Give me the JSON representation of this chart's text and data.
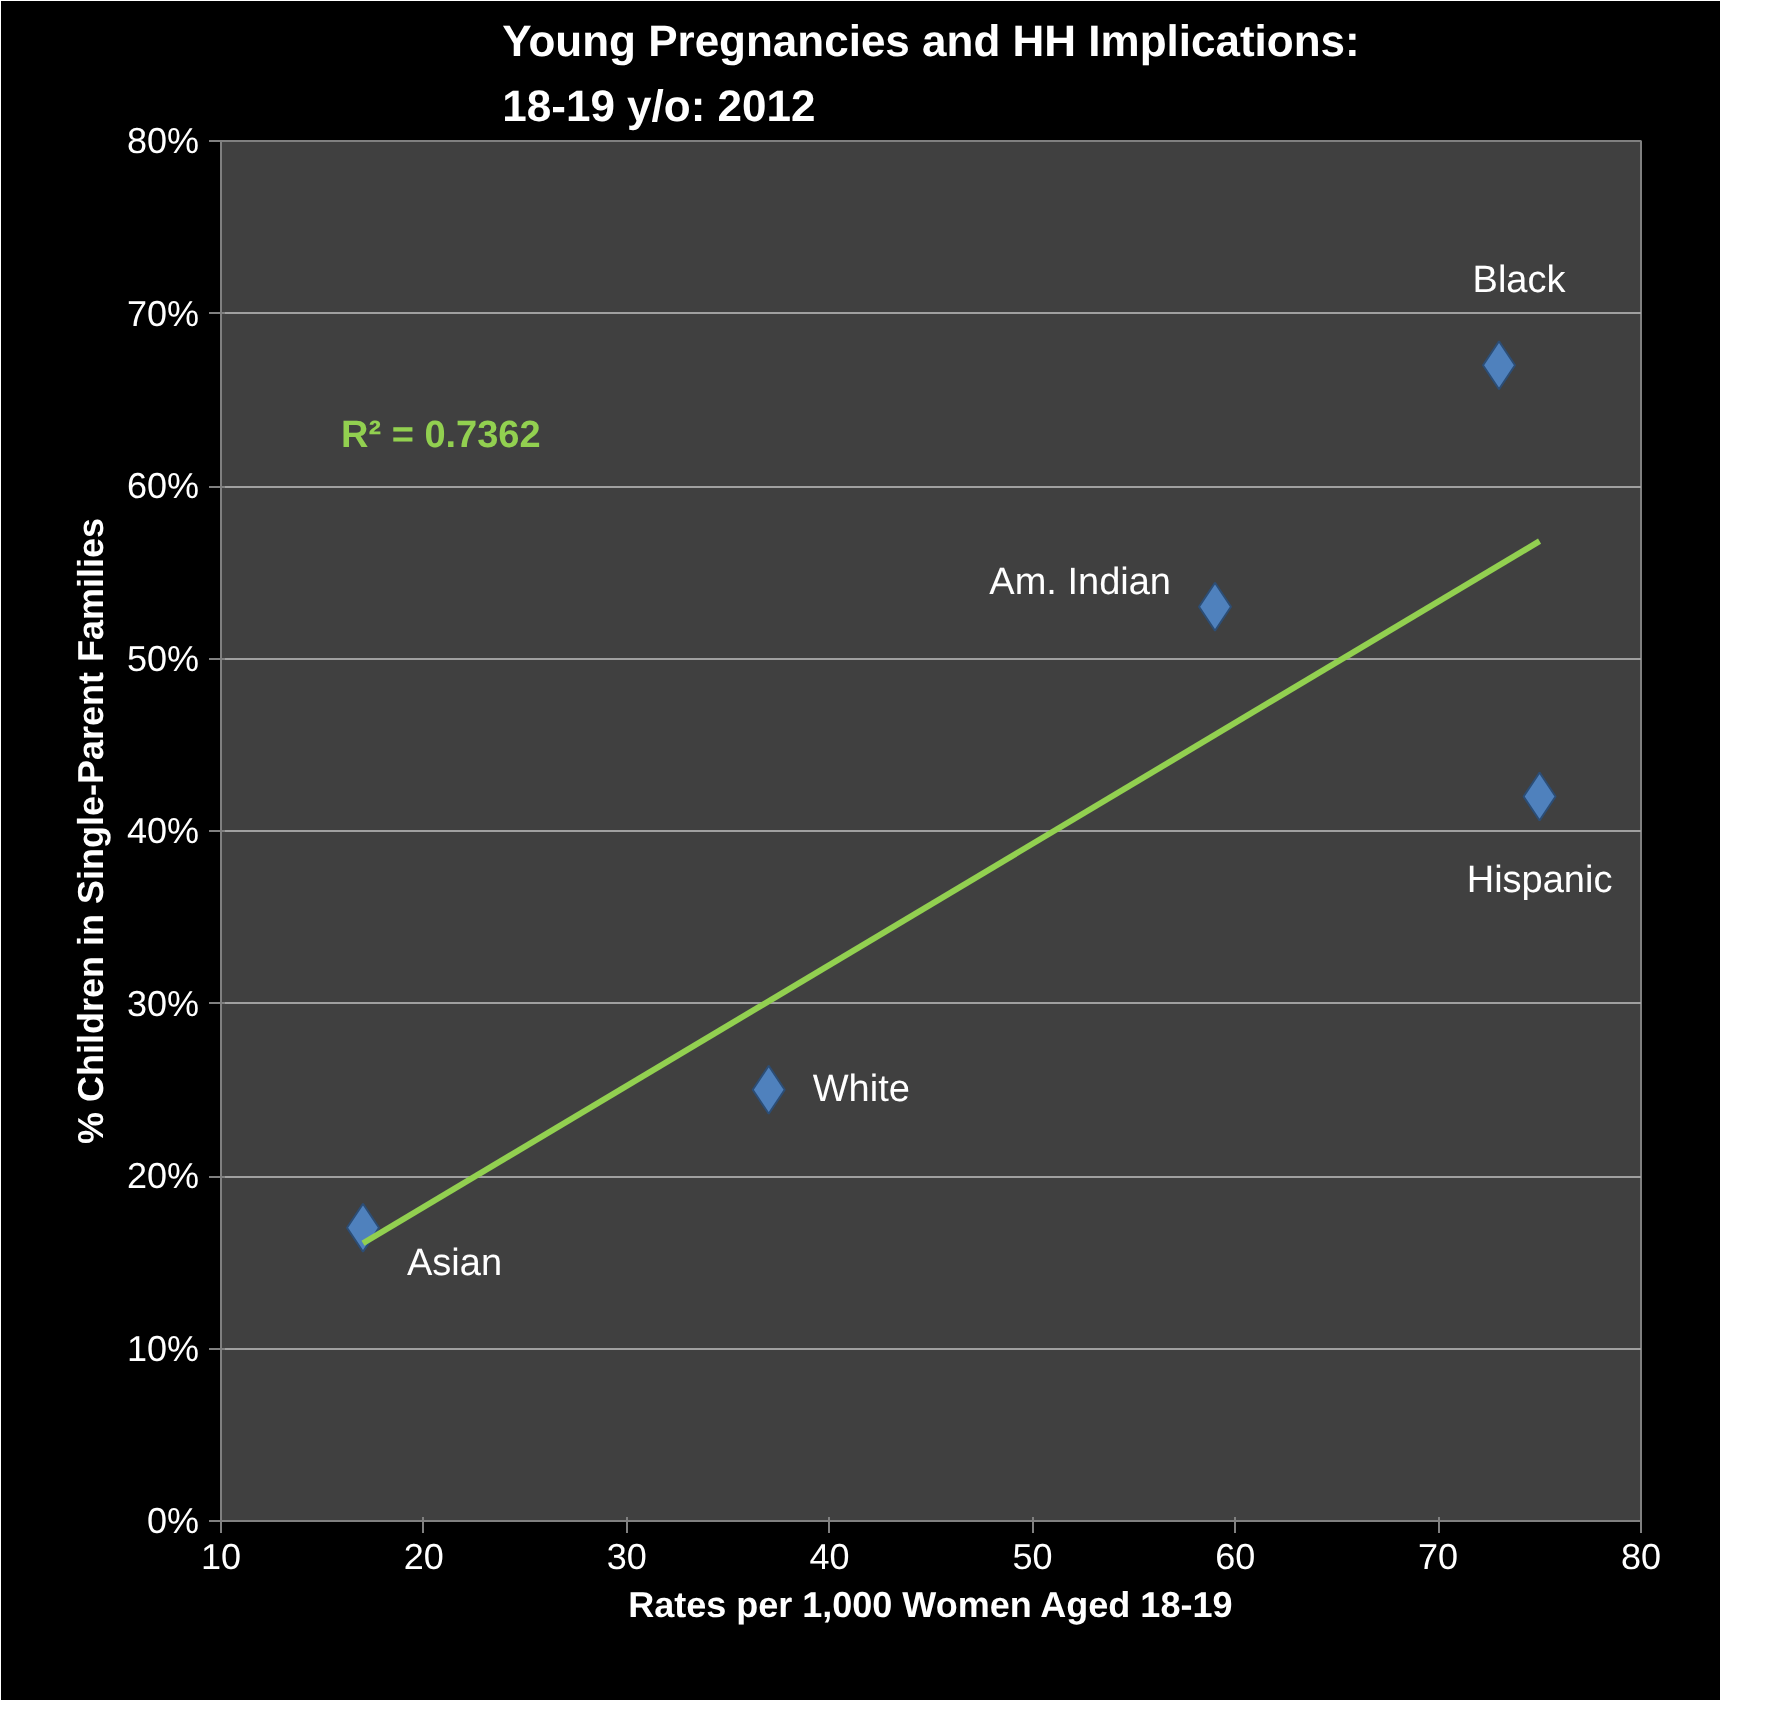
{
  "chart_data": {
    "type": "scatter",
    "title": "Young Pregnancies and HH Implications:\n18-19 y/o: 2012",
    "xlabel": "Rates per 1,000 Women Aged 18-19",
    "ylabel": "% Children in Single-Parent Families",
    "series": [
      {
        "color": "#4f81bd",
        "x": [
          17,
          37,
          59,
          73,
          75
        ],
        "values": [
          17,
          25,
          53,
          67,
          42
        ],
        "marker": "diamond"
      },
      {
        "type": "line",
        "color": "#92d050",
        "x": [
          17,
          75
        ],
        "values": [
          16.1,
          56.8
        ]
      }
    ],
    "xlim": [
      10,
      80
    ],
    "xticks": [
      10,
      20,
      30,
      40,
      50,
      60,
      70,
      80
    ],
    "ylim": [
      0,
      80
    ],
    "yticks": [
      {
        "value": 0,
        "label": "0%"
      },
      {
        "value": 10,
        "label": "10%"
      },
      {
        "value": 20,
        "label": "20%"
      },
      {
        "value": 30,
        "label": "30%"
      },
      {
        "value": 40,
        "label": "40%"
      },
      {
        "value": 50,
        "label": "50%"
      },
      {
        "value": 60,
        "label": "60%"
      },
      {
        "value": 70,
        "label": "70%"
      },
      {
        "value": 80,
        "label": "80%"
      }
    ],
    "grid": "y",
    "annotations": [
      {
        "text": "Asian",
        "x": 17,
        "y": 17
      },
      {
        "text": "White",
        "x": 37,
        "y": 25
      },
      {
        "text": "Am. Indian",
        "x": 59,
        "y": 53
      },
      {
        "text": "Black",
        "x": 73,
        "y": 67
      },
      {
        "text": "Hispanic",
        "x": 75,
        "y": 42
      },
      "R² = 0.7362"
    ]
  }
}
